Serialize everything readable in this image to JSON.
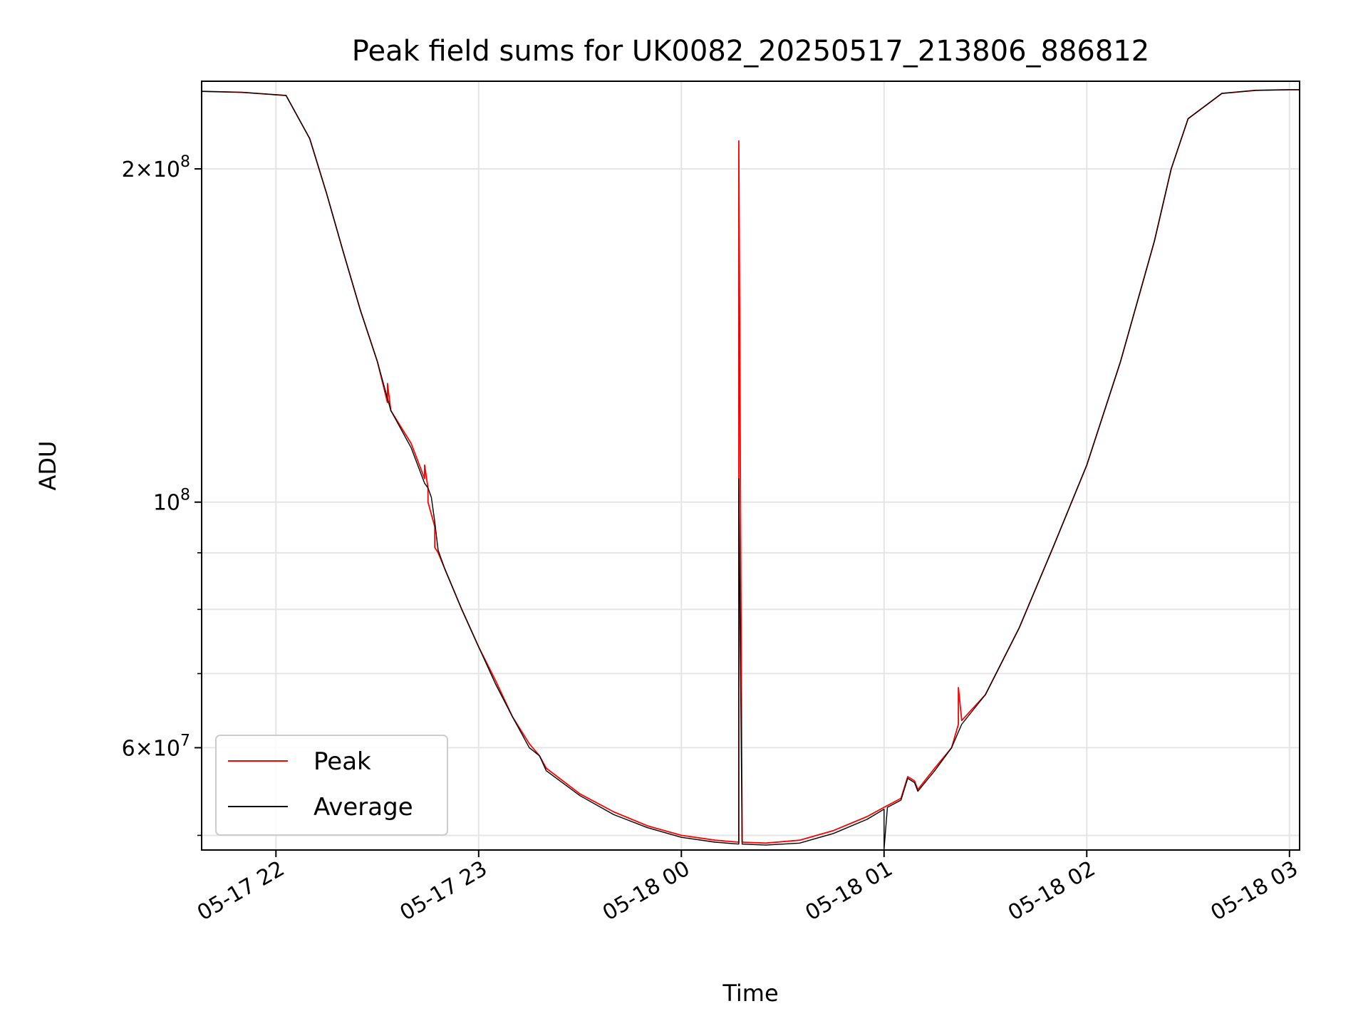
{
  "chart_data": {
    "type": "line",
    "title": "Peak field sums for UK0082_20250517_213806_886812",
    "xlabel": "Time",
    "ylabel": "ADU",
    "y_scale": "log",
    "grid": true,
    "legend_placement": "lower-left",
    "xlim": [
      "2025-05-17 21:38",
      "2025-05-18 03:03"
    ],
    "ylim": [
      48500000,
      240000000
    ],
    "x_ticks": [
      {
        "t": "2025-05-17 22:00",
        "label": "05-17 22"
      },
      {
        "t": "2025-05-17 23:00",
        "label": "05-17 23"
      },
      {
        "t": "2025-05-18 00:00",
        "label": "05-18 00"
      },
      {
        "t": "2025-05-18 01:00",
        "label": "05-18 01"
      },
      {
        "t": "2025-05-18 02:00",
        "label": "05-18 02"
      },
      {
        "t": "2025-05-18 03:00",
        "label": "05-18 03"
      }
    ],
    "y_major_ticks": [
      {
        "value": 60000000,
        "base": "6",
        "exp": "7",
        "times": true
      },
      {
        "value": 100000000,
        "base": "",
        "exp": "8",
        "times": false
      },
      {
        "value": 200000000,
        "base": "2",
        "exp": "8",
        "times": true
      }
    ],
    "y_minor_ticks": [
      50000000,
      70000000,
      80000000,
      90000000
    ],
    "series": [
      {
        "name": "Peak",
        "color": "#ff0000",
        "x": [
          "2025-05-17 21:38",
          "2025-05-17 21:50",
          "2025-05-17 22:03",
          "2025-05-17 22:10",
          "2025-05-17 22:15",
          "2025-05-17 22:20",
          "2025-05-17 22:25",
          "2025-05-17 22:30",
          "2025-05-17 22:33",
          "2025-05-17 22:33",
          "2025-05-17 22:34",
          "2025-05-17 22:40",
          "2025-05-17 22:44",
          "2025-05-17 22:44",
          "2025-05-17 22:45",
          "2025-05-17 22:45",
          "2025-05-17 22:47",
          "2025-05-17 22:47",
          "2025-05-17 22:48",
          "2025-05-17 22:50",
          "2025-05-17 22:55",
          "2025-05-17 23:00",
          "2025-05-17 23:05",
          "2025-05-17 23:10",
          "2025-05-17 23:15",
          "2025-05-17 23:18",
          "2025-05-17 23:20",
          "2025-05-17 23:30",
          "2025-05-17 23:40",
          "2025-05-17 23:50",
          "2025-05-18 00:00",
          "2025-05-18 00:10",
          "2025-05-18 00:17",
          "2025-05-18 00:17",
          "2025-05-18 00:18",
          "2025-05-18 00:25",
          "2025-05-18 00:35",
          "2025-05-18 00:45",
          "2025-05-18 00:55",
          "2025-05-18 01:00",
          "2025-05-18 01:05",
          "2025-05-18 01:07",
          "2025-05-18 01:09",
          "2025-05-18 01:10",
          "2025-05-18 01:15",
          "2025-05-18 01:20",
          "2025-05-18 01:22",
          "2025-05-18 01:22",
          "2025-05-18 01:23",
          "2025-05-18 01:30",
          "2025-05-18 01:40",
          "2025-05-18 01:50",
          "2025-05-18 02:00",
          "2025-05-18 02:10",
          "2025-05-18 02:20",
          "2025-05-18 02:25",
          "2025-05-18 02:30",
          "2025-05-18 02:40",
          "2025-05-18 02:50",
          "2025-05-18 03:00",
          "2025-05-18 03:03"
        ],
        "y": [
          235000000,
          234500000,
          233000000,
          213000000,
          190000000,
          168000000,
          149000000,
          134000000,
          123000000,
          128000000,
          121000000,
          113000000,
          105000000,
          108000000,
          103000000,
          100000000,
          95000000,
          91000000,
          90000000,
          87000000,
          80000000,
          74000000,
          69000000,
          64000000,
          60500000,
          59000000,
          57500000,
          54500000,
          52500000,
          51000000,
          50000000,
          49500000,
          49300000,
          212000000,
          49300000,
          49200000,
          49500000,
          50500000,
          52000000,
          53000000,
          54000000,
          56500000,
          56000000,
          55000000,
          57500000,
          60000000,
          63000000,
          68000000,
          63500000,
          67000000,
          77000000,
          91000000,
          108000000,
          134000000,
          172000000,
          200000000,
          222000000,
          234000000,
          235500000,
          235800000,
          235800000
        ]
      },
      {
        "name": "Average",
        "color": "#000000",
        "x": [
          "2025-05-17 21:38",
          "2025-05-17 21:50",
          "2025-05-17 22:03",
          "2025-05-17 22:10",
          "2025-05-17 22:15",
          "2025-05-17 22:20",
          "2025-05-17 22:25",
          "2025-05-17 22:30",
          "2025-05-17 22:34",
          "2025-05-17 22:40",
          "2025-05-17 22:44",
          "2025-05-17 22:45",
          "2025-05-17 22:46",
          "2025-05-17 22:47",
          "2025-05-17 22:48",
          "2025-05-17 22:50",
          "2025-05-17 22:55",
          "2025-05-17 23:00",
          "2025-05-17 23:05",
          "2025-05-17 23:10",
          "2025-05-17 23:15",
          "2025-05-17 23:18",
          "2025-05-17 23:20",
          "2025-05-17 23:30",
          "2025-05-17 23:40",
          "2025-05-17 23:50",
          "2025-05-18 00:00",
          "2025-05-18 00:10",
          "2025-05-18 00:17",
          "2025-05-18 00:17",
          "2025-05-18 00:18",
          "2025-05-18 00:25",
          "2025-05-18 00:35",
          "2025-05-18 00:45",
          "2025-05-18 00:55",
          "2025-05-18 01:00",
          "2025-05-18 01:00",
          "2025-05-18 01:01",
          "2025-05-18 01:05",
          "2025-05-18 01:07",
          "2025-05-18 01:09",
          "2025-05-18 01:10",
          "2025-05-18 01:15",
          "2025-05-18 01:20",
          "2025-05-18 01:23",
          "2025-05-18 01:30",
          "2025-05-18 01:40",
          "2025-05-18 01:50",
          "2025-05-18 02:00",
          "2025-05-18 02:10",
          "2025-05-18 02:20",
          "2025-05-18 02:25",
          "2025-05-18 02:30",
          "2025-05-18 02:40",
          "2025-05-18 02:50",
          "2025-05-18 03:00",
          "2025-05-18 03:03"
        ],
        "y": [
          235000000,
          234500000,
          233000000,
          213000000,
          190000000,
          168000000,
          149000000,
          134000000,
          121000000,
          112000000,
          104000000,
          103000000,
          101000000,
          96000000,
          90500000,
          87000000,
          80000000,
          74000000,
          68500000,
          64000000,
          60000000,
          59000000,
          57200000,
          54300000,
          52200000,
          50800000,
          49800000,
          49300000,
          49100000,
          105000000,
          49100000,
          49000000,
          49200000,
          50200000,
          51700000,
          52800000,
          48600000,
          53000000,
          53800000,
          56300000,
          55800000,
          54800000,
          57200000,
          60000000,
          63000000,
          67000000,
          77000000,
          91000000,
          108000000,
          134000000,
          172000000,
          200000000,
          222000000,
          234000000,
          235500000,
          235800000,
          235800000
        ]
      }
    ]
  }
}
